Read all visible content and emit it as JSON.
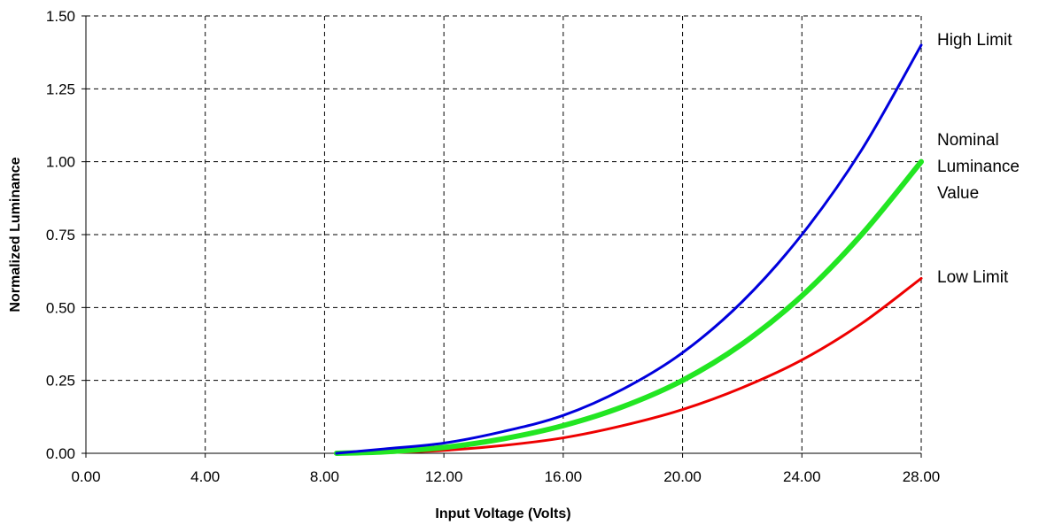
{
  "chart_data": {
    "type": "line",
    "xlabel": "Input Voltage (Volts)",
    "ylabel": "Normalized Luminance",
    "xlim": [
      0,
      28
    ],
    "ylim": [
      0,
      1.5
    ],
    "x_ticks": [
      "0.00",
      "4.00",
      "8.00",
      "12.00",
      "16.00",
      "20.00",
      "24.00",
      "28.00"
    ],
    "y_ticks": [
      "0.00",
      "0.25",
      "0.50",
      "0.75",
      "1.00",
      "1.25",
      "1.50"
    ],
    "grid": true,
    "legend": "none",
    "x": [
      8.4,
      10,
      12,
      14,
      16,
      18,
      20,
      22,
      24,
      26,
      28
    ],
    "series": [
      {
        "name": "High Limit",
        "color": "#0000dd",
        "line_width": 3,
        "values": [
          0.0,
          0.015,
          0.035,
          0.075,
          0.13,
          0.22,
          0.345,
          0.52,
          0.75,
          1.04,
          1.4
        ]
      },
      {
        "name": "Nominal Luminance Value",
        "label_lines": [
          "Nominal",
          "Luminance",
          "Value"
        ],
        "color": "#22e622",
        "line_width": 6,
        "values": [
          0.0,
          0.005,
          0.02,
          0.05,
          0.095,
          0.16,
          0.25,
          0.375,
          0.54,
          0.75,
          1.0
        ]
      },
      {
        "name": "Low Limit",
        "color": "#ee0000",
        "line_width": 3,
        "values": [
          0.0,
          0.002,
          0.01,
          0.027,
          0.053,
          0.095,
          0.15,
          0.225,
          0.32,
          0.445,
          0.6
        ]
      }
    ]
  }
}
